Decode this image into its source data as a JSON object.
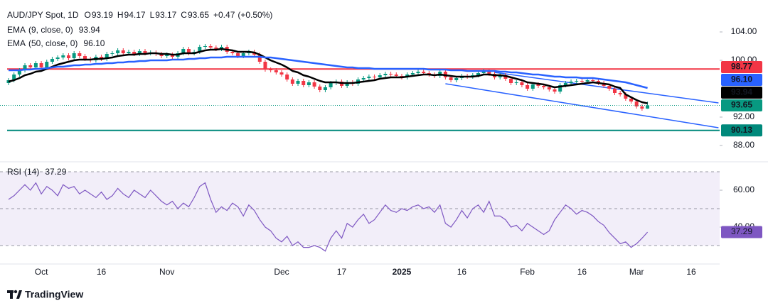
{
  "chart_data": [
    {
      "type": "candlestick",
      "title": "AUD/JPY Spot, 1D",
      "ohlc_labels": [
        "O",
        "H",
        "L",
        "C"
      ],
      "change": "+0.47",
      "change_percent": "(+0.50%)",
      "up_color": "#089981",
      "down_color": "#f23645",
      "categories": [
        null,
        null,
        null,
        null,
        null,
        null,
        "Oct",
        null,
        null,
        null,
        null,
        null,
        null,
        null,
        null,
        null,
        null,
        "16",
        null,
        null,
        null,
        null,
        null,
        null,
        null,
        null,
        null,
        null,
        null,
        "Nov",
        null,
        null,
        null,
        null,
        null,
        null,
        null,
        null,
        null,
        null,
        null,
        null,
        null,
        null,
        null,
        null,
        null,
        null,
        null,
        null,
        "Dec",
        null,
        null,
        null,
        null,
        null,
        null,
        null,
        null,
        null,
        null,
        "17",
        null,
        null,
        null,
        null,
        null,
        null,
        null,
        null,
        null,
        null,
        "2025",
        null,
        null,
        null,
        null,
        null,
        null,
        null,
        null,
        null,
        null,
        "16",
        null,
        null,
        null,
        null,
        null,
        null,
        null,
        null,
        null,
        null,
        null,
        "Feb",
        null,
        null,
        null,
        null,
        null,
        null,
        null,
        null,
        null,
        "16",
        null,
        null,
        null,
        null,
        null,
        null,
        null,
        null,
        null,
        "Mar",
        null,
        null,
        null,
        null,
        null,
        null,
        null,
        null,
        null,
        "16"
      ],
      "open": [
        96.8,
        97.2,
        98.0,
        98.6,
        99.3,
        99.0,
        99.6,
        99.0,
        99.8,
        100.2,
        100.4,
        100.7,
        100.3,
        101.0,
        100.6,
        100.2,
        100.0,
        100.5,
        100.2,
        100.9,
        101.0,
        101.4,
        101.0,
        101.2,
        100.9,
        101.3,
        101.0,
        101.1,
        100.9,
        100.6,
        100.8,
        100.5,
        101.0,
        101.6,
        101.0,
        101.2,
        101.9,
        102.0,
        101.8,
        101.6,
        101.9,
        101.2,
        101.0,
        100.6,
        101.0,
        101.2,
        100.8,
        99.8,
        98.7,
        98.6,
        98.3,
        98.0,
        97.3,
        96.7,
        97.1,
        96.5,
        96.9,
        96.3,
        95.8,
        96.2,
        96.8,
        97.0,
        96.4,
        96.9,
        96.7,
        97.3,
        97.5,
        97.7,
        97.6,
        97.9,
        98.1,
        98.0,
        97.8,
        97.6,
        98.0,
        98.2,
        98.4,
        98.2,
        98.0,
        97.8,
        98.4,
        97.6,
        97.2,
        97.5,
        97.8,
        97.7,
        97.9,
        98.2,
        98.5,
        98.1,
        97.6,
        97.9,
        97.4,
        96.8,
        96.9,
        96.5,
        96.0,
        96.6,
        96.4,
        96.2,
        95.9,
        95.6,
        96.5,
        96.8,
        97.0,
        97.1,
        97.0,
        97.2,
        97.1,
        96.8,
        96.4,
        96.0,
        95.4,
        95.2,
        94.6,
        94.2,
        93.5,
        93.19,
        null,
        null,
        null,
        null,
        null,
        null,
        null,
        null
      ],
      "high": [
        97.5,
        98.3,
        98.9,
        99.6,
        99.6,
        99.9,
        99.9,
        100.1,
        100.5,
        100.7,
        101.0,
        101.0,
        101.3,
        101.3,
        100.9,
        100.5,
        100.8,
        100.8,
        101.2,
        101.3,
        101.7,
        101.7,
        101.5,
        101.5,
        101.6,
        101.6,
        101.4,
        101.4,
        101.2,
        101.1,
        101.1,
        101.3,
        101.9,
        101.9,
        101.5,
        102.2,
        102.3,
        102.3,
        102.1,
        102.2,
        102.2,
        101.5,
        101.3,
        101.3,
        101.5,
        101.5,
        101.1,
        100.1,
        99.0,
        98.9,
        98.6,
        98.3,
        97.6,
        97.4,
        97.4,
        97.2,
        97.2,
        96.6,
        96.5,
        97.1,
        97.3,
        97.3,
        97.2,
        97.2,
        97.6,
        97.8,
        98.0,
        98.0,
        98.2,
        98.4,
        98.4,
        98.3,
        98.1,
        98.3,
        98.5,
        98.7,
        98.7,
        98.5,
        98.3,
        98.7,
        98.7,
        97.9,
        97.8,
        98.1,
        98.1,
        98.2,
        98.5,
        98.8,
        98.8,
        98.4,
        98.2,
        98.2,
        97.7,
        97.2,
        97.2,
        96.8,
        96.9,
        96.9,
        96.7,
        96.5,
        96.2,
        96.8,
        97.1,
        97.3,
        97.4,
        97.4,
        97.5,
        97.5,
        97.4,
        97.1,
        96.7,
        96.3,
        95.7,
        95.5,
        94.9,
        94.5,
        93.8,
        94.17,
        null,
        null,
        null,
        null,
        null,
        null,
        null,
        null
      ],
      "low": [
        96.5,
        96.9,
        97.7,
        98.3,
        98.7,
        98.7,
        98.7,
        98.7,
        99.5,
        99.9,
        100.1,
        100.0,
        100.0,
        100.3,
        99.9,
        99.7,
        99.7,
        99.9,
        99.9,
        100.6,
        100.7,
        100.7,
        100.7,
        100.6,
        100.6,
        100.7,
        100.7,
        100.6,
        100.3,
        100.3,
        100.2,
        100.2,
        100.7,
        100.7,
        100.7,
        100.9,
        101.6,
        101.5,
        101.3,
        101.3,
        100.9,
        100.7,
        100.3,
        100.3,
        100.7,
        100.5,
        99.5,
        98.4,
        98.3,
        98.0,
        97.7,
        97.0,
        96.4,
        96.4,
        96.2,
        96.2,
        96.0,
        95.5,
        95.5,
        95.9,
        96.5,
        96.1,
        96.1,
        96.4,
        96.4,
        97.0,
        97.2,
        97.3,
        97.3,
        97.6,
        97.7,
        97.5,
        97.3,
        97.3,
        97.7,
        97.9,
        97.9,
        97.7,
        97.5,
        97.5,
        97.3,
        96.9,
        96.9,
        97.2,
        97.4,
        97.4,
        97.6,
        97.9,
        97.8,
        97.3,
        97.3,
        97.1,
        96.5,
        96.5,
        96.2,
        95.7,
        95.7,
        96.1,
        95.9,
        95.6,
        95.3,
        95.3,
        96.2,
        96.5,
        96.7,
        96.7,
        96.7,
        96.8,
        96.5,
        96.1,
        95.7,
        95.1,
        94.9,
        94.3,
        93.9,
        93.2,
        92.9,
        93.17,
        null,
        null,
        null,
        null,
        null,
        null,
        null,
        null
      ],
      "close": [
        97.2,
        98.0,
        98.6,
        99.3,
        99.0,
        99.6,
        99.0,
        99.8,
        100.2,
        100.4,
        100.7,
        100.3,
        101.0,
        100.6,
        100.2,
        100.0,
        100.5,
        100.2,
        100.9,
        101.0,
        101.4,
        101.0,
        101.2,
        100.9,
        101.3,
        101.0,
        101.1,
        100.9,
        100.6,
        100.8,
        100.5,
        101.0,
        101.6,
        101.0,
        101.2,
        101.9,
        102.0,
        101.8,
        101.6,
        101.9,
        101.2,
        101.0,
        100.6,
        101.0,
        101.2,
        100.8,
        99.8,
        98.7,
        98.6,
        98.3,
        98.0,
        97.3,
        96.7,
        97.1,
        96.5,
        96.9,
        96.3,
        95.8,
        96.2,
        96.8,
        97.0,
        96.4,
        96.9,
        96.7,
        97.3,
        97.5,
        97.7,
        97.6,
        97.9,
        98.1,
        98.0,
        97.8,
        97.6,
        98.0,
        98.2,
        98.4,
        98.2,
        98.0,
        97.8,
        98.4,
        97.6,
        97.2,
        97.5,
        97.8,
        97.7,
        97.9,
        98.2,
        98.5,
        98.1,
        97.6,
        97.9,
        97.4,
        96.8,
        96.9,
        96.5,
        96.0,
        96.6,
        96.4,
        96.2,
        95.9,
        95.6,
        96.5,
        96.8,
        97.0,
        97.1,
        97.0,
        97.2,
        97.1,
        96.8,
        96.4,
        96.0,
        95.4,
        95.2,
        94.6,
        94.2,
        93.5,
        93.19,
        93.65,
        null,
        null,
        null,
        null,
        null,
        null,
        null,
        null
      ],
      "series": [
        {
          "name": "EMA",
          "params": "(9, close, 0)",
          "last_label": "93.94",
          "color": "#000000",
          "values": [
            97.0,
            97.2,
            97.5,
            97.9,
            98.1,
            98.4,
            98.5,
            98.8,
            99.1,
            99.4,
            99.6,
            99.8,
            100.0,
            100.1,
            100.1,
            100.1,
            100.2,
            100.2,
            100.3,
            100.4,
            100.6,
            100.7,
            100.8,
            100.8,
            100.9,
            100.9,
            101.0,
            101.0,
            100.9,
            100.9,
            100.8,
            100.8,
            101.0,
            101.0,
            101.0,
            101.2,
            101.4,
            101.5,
            101.5,
            101.6,
            101.5,
            101.4,
            101.2,
            101.2,
            101.2,
            101.1,
            100.8,
            100.4,
            100.0,
            99.7,
            99.4,
            99.0,
            98.5,
            98.3,
            97.9,
            97.7,
            97.4,
            97.1,
            96.9,
            96.9,
            96.9,
            96.8,
            96.8,
            96.8,
            96.9,
            97.0,
            97.1,
            97.2,
            97.4,
            97.5,
            97.6,
            97.6,
            97.6,
            97.7,
            97.8,
            97.9,
            98.0,
            98.0,
            97.9,
            98.0,
            97.9,
            97.8,
            97.7,
            97.7,
            97.7,
            97.7,
            97.8,
            98.0,
            98.0,
            97.9,
            97.9,
            97.8,
            97.6,
            97.4,
            97.2,
            96.9,
            96.8,
            96.7,
            96.6,
            96.4,
            96.2,
            96.3,
            96.4,
            96.5,
            96.6,
            96.7,
            96.8,
            96.9,
            96.8,
            96.7,
            96.6,
            96.3,
            96.1,
            95.2,
            94.8,
            94.4,
            94.1,
            93.94,
            null,
            null,
            null,
            null,
            null,
            null,
            null,
            null
          ]
        },
        {
          "name": "EMA",
          "params": "(50, close, 0)",
          "last_label": "96.10",
          "color": "#2962ff",
          "values": [
            98.6,
            98.6,
            98.6,
            98.7,
            98.7,
            98.8,
            98.8,
            98.9,
            99.0,
            99.1,
            99.1,
            99.2,
            99.3,
            99.3,
            99.4,
            99.4,
            99.5,
            99.5,
            99.6,
            99.6,
            99.7,
            99.7,
            99.8,
            99.8,
            99.9,
            99.9,
            100.0,
            100.0,
            100.0,
            100.0,
            100.1,
            100.1,
            100.1,
            100.2,
            100.2,
            100.3,
            100.3,
            100.4,
            100.4,
            100.4,
            100.5,
            100.5,
            100.5,
            100.5,
            100.5,
            100.5,
            100.5,
            100.4,
            100.4,
            100.3,
            100.2,
            100.1,
            100.0,
            99.9,
            99.8,
            99.7,
            99.6,
            99.5,
            99.4,
            99.3,
            99.2,
            99.1,
            99.0,
            99.0,
            98.9,
            98.9,
            98.9,
            98.8,
            98.8,
            98.8,
            98.8,
            98.8,
            98.8,
            98.8,
            98.8,
            98.8,
            98.8,
            98.7,
            98.7,
            98.7,
            98.7,
            98.6,
            98.6,
            98.6,
            98.5,
            98.5,
            98.5,
            98.5,
            98.5,
            98.5,
            98.4,
            98.4,
            98.3,
            98.3,
            98.2,
            98.1,
            98.0,
            98.0,
            97.9,
            97.8,
            97.7,
            97.7,
            97.6,
            97.6,
            97.6,
            97.5,
            97.5,
            97.5,
            97.4,
            97.3,
            97.2,
            97.1,
            97.0,
            96.9,
            96.7,
            96.5,
            96.3,
            96.1,
            null,
            null,
            null,
            null,
            null,
            null,
            null,
            null
          ]
        }
      ],
      "levels": [
        {
          "value": 98.77,
          "color": "#f23645"
        },
        {
          "value": 90.13,
          "color": "#00897b"
        }
      ],
      "trendlines": [
        {
          "color": "#2962ff",
          "x": [
            89,
            130
          ],
          "values": [
            98.3,
            94.0
          ]
        },
        {
          "color": "#2962ff",
          "x": [
            80,
            130
          ],
          "values": [
            96.7,
            90.5
          ]
        }
      ],
      "ylim": [
        85.7,
        108.5
      ],
      "yticks": [
        {
          "value": 88,
          "label": "88.00"
        },
        {
          "value": 92,
          "label": "92.00"
        },
        {
          "value": 100,
          "label": "100.00"
        },
        {
          "value": 104,
          "label": "104.00"
        }
      ]
    },
    {
      "type": "line",
      "title": "RSI",
      "params": "(14)",
      "color": "#7e57c2",
      "values": [
        55,
        57,
        60,
        63,
        60,
        64,
        58,
        62,
        60,
        57,
        63,
        61,
        62,
        58,
        60,
        58,
        56,
        59,
        55,
        57,
        61,
        58,
        56,
        60,
        58,
        56,
        60,
        57,
        54,
        52,
        54,
        50,
        53,
        51,
        56,
        62,
        64,
        55,
        48,
        51,
        49,
        53,
        51,
        46,
        52,
        49,
        44,
        40,
        38,
        34,
        32,
        35,
        30,
        32,
        29,
        29,
        30,
        29,
        27,
        34,
        38,
        34,
        42,
        40,
        44,
        47,
        42,
        44,
        48,
        52,
        49,
        48,
        50,
        49,
        51,
        52,
        50,
        51,
        48,
        52,
        42,
        40,
        44,
        49,
        45,
        50,
        52,
        48,
        54,
        46,
        46,
        44,
        40,
        41,
        38,
        42,
        40,
        38,
        36,
        38,
        44,
        48,
        52,
        50,
        47,
        49,
        48,
        46,
        43,
        41,
        37,
        34,
        31,
        32,
        29,
        31,
        34,
        37.29,
        null,
        null,
        null,
        null,
        null,
        null,
        null,
        null
      ],
      "bands": [
        70,
        50,
        30
      ],
      "ylim": [
        20,
        75.4
      ],
      "yticks": [
        {
          "value": 40,
          "label": "40.00"
        },
        {
          "value": 60,
          "label": "60.00"
        }
      ]
    }
  ],
  "footer": {
    "brand": "TradingView"
  }
}
